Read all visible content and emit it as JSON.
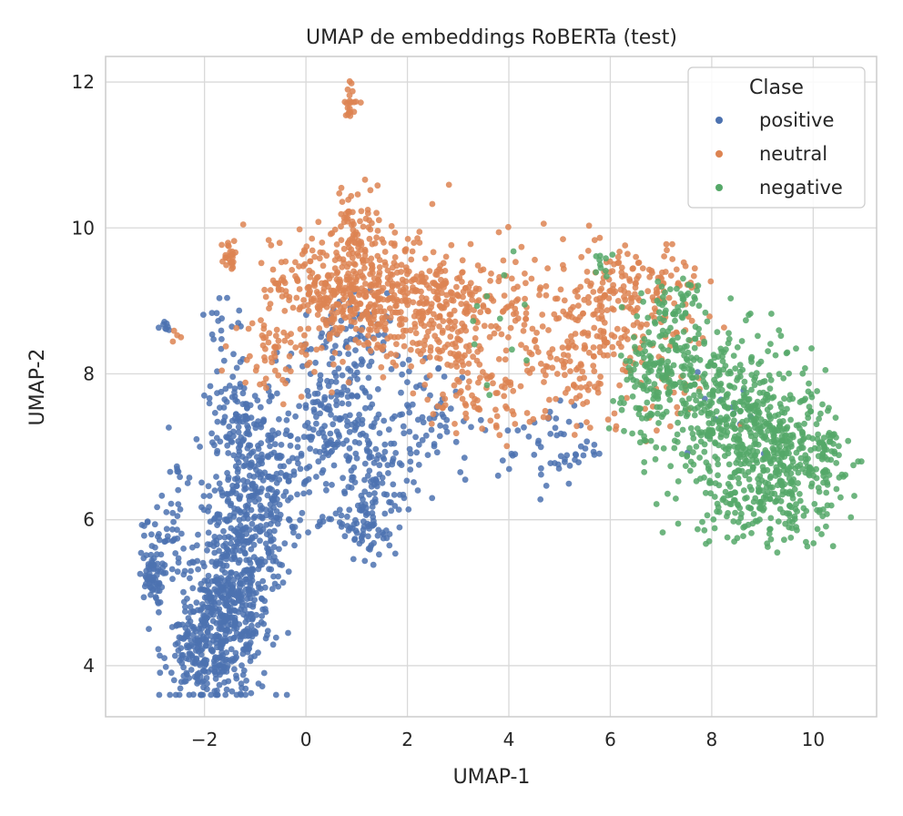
{
  "chart_data": {
    "type": "scatter",
    "title": "UMAP de embeddings RoBERTa (test)",
    "xlabel": "UMAP-1",
    "ylabel": "UMAP-2",
    "xlim": [
      -3.95,
      11.25
    ],
    "ylim": [
      3.3,
      12.35
    ],
    "xticks": [
      -2,
      0,
      2,
      4,
      6,
      8,
      10
    ],
    "yticks": [
      4,
      6,
      8,
      10,
      12
    ],
    "grid": true,
    "legend": {
      "title": "Clase",
      "placement": "top-right"
    },
    "colors": {
      "positive": "#4c72b0",
      "neutral": "#dd8452",
      "negative": "#55a868"
    },
    "series": [
      {
        "name": "positive",
        "clusters": [
          {
            "cx": -1.6,
            "cy": 4.6,
            "sx": 0.45,
            "sy": 0.55,
            "n": 420
          },
          {
            "cx": -2.1,
            "cy": 4.2,
            "sx": 0.35,
            "sy": 0.3,
            "n": 120
          },
          {
            "cx": -1.3,
            "cy": 5.6,
            "sx": 0.45,
            "sy": 0.5,
            "n": 200
          },
          {
            "cx": -3.05,
            "cy": 5.2,
            "sx": 0.12,
            "sy": 0.18,
            "n": 60
          },
          {
            "cx": -2.8,
            "cy": 5.8,
            "sx": 0.2,
            "sy": 0.3,
            "n": 40
          },
          {
            "cx": -0.8,
            "cy": 6.4,
            "sx": 0.5,
            "sy": 0.45,
            "n": 180
          },
          {
            "cx": -1.2,
            "cy": 7.2,
            "sx": 0.4,
            "sy": 0.4,
            "n": 140
          },
          {
            "cx": 0.5,
            "cy": 7.2,
            "sx": 0.45,
            "sy": 0.5,
            "n": 150
          },
          {
            "cx": 1.3,
            "cy": 6.5,
            "sx": 0.4,
            "sy": 0.5,
            "n": 120
          },
          {
            "cx": 1.2,
            "cy": 5.9,
            "sx": 0.3,
            "sy": 0.2,
            "n": 40
          },
          {
            "cx": 0.6,
            "cy": 8.3,
            "sx": 0.5,
            "sy": 0.4,
            "n": 90
          },
          {
            "cx": 2.3,
            "cy": 7.4,
            "sx": 0.55,
            "sy": 0.4,
            "n": 70
          },
          {
            "cx": 4.8,
            "cy": 7.0,
            "sx": 0.5,
            "sy": 0.3,
            "n": 55
          },
          {
            "cx": -1.5,
            "cy": 8.6,
            "sx": 0.2,
            "sy": 0.4,
            "n": 20
          },
          {
            "cx": -2.8,
            "cy": 8.65,
            "sx": 0.1,
            "sy": 0.05,
            "n": 8
          },
          {
            "cx": -2.6,
            "cy": 6.7,
            "sx": 0.1,
            "sy": 0.06,
            "n": 6
          },
          {
            "cx": 8.2,
            "cy": 7.6,
            "sx": 0.6,
            "sy": 0.4,
            "n": 12
          }
        ]
      },
      {
        "name": "neutral",
        "clusters": [
          {
            "cx": 1.3,
            "cy": 9.1,
            "sx": 0.75,
            "sy": 0.45,
            "n": 380
          },
          {
            "cx": 2.6,
            "cy": 8.8,
            "sx": 0.6,
            "sy": 0.5,
            "n": 200
          },
          {
            "cx": 0.2,
            "cy": 9.2,
            "sx": 0.45,
            "sy": 0.3,
            "n": 110
          },
          {
            "cx": 1.0,
            "cy": 10.1,
            "sx": 0.25,
            "sy": 0.25,
            "n": 50
          },
          {
            "cx": 0.9,
            "cy": 11.75,
            "sx": 0.07,
            "sy": 0.12,
            "n": 22
          },
          {
            "cx": -1.5,
            "cy": 9.6,
            "sx": 0.08,
            "sy": 0.12,
            "n": 25
          },
          {
            "cx": 5.8,
            "cy": 8.8,
            "sx": 0.5,
            "sy": 0.5,
            "n": 170
          },
          {
            "cx": 6.8,
            "cy": 9.2,
            "sx": 0.5,
            "sy": 0.3,
            "n": 80
          },
          {
            "cx": 4.2,
            "cy": 8.7,
            "sx": 0.6,
            "sy": 0.5,
            "n": 90
          },
          {
            "cx": 3.4,
            "cy": 7.6,
            "sx": 0.6,
            "sy": 0.3,
            "n": 60
          },
          {
            "cx": 5.2,
            "cy": 7.9,
            "sx": 0.5,
            "sy": 0.35,
            "n": 60
          },
          {
            "cx": -0.7,
            "cy": 8.5,
            "sx": 0.35,
            "sy": 0.4,
            "n": 60
          },
          {
            "cx": -2.6,
            "cy": 8.55,
            "sx": 0.06,
            "sy": 0.05,
            "n": 4
          },
          {
            "cx": 7.3,
            "cy": 7.9,
            "sx": 0.4,
            "sy": 0.35,
            "n": 35
          }
        ]
      },
      {
        "name": "negative",
        "clusters": [
          {
            "cx": 8.6,
            "cy": 7.3,
            "sx": 0.7,
            "sy": 0.55,
            "n": 420
          },
          {
            "cx": 9.6,
            "cy": 6.6,
            "sx": 0.5,
            "sy": 0.4,
            "n": 220
          },
          {
            "cx": 7.4,
            "cy": 8.2,
            "sx": 0.55,
            "sy": 0.45,
            "n": 180
          },
          {
            "cx": 8.5,
            "cy": 6.2,
            "sx": 0.5,
            "sy": 0.3,
            "n": 80
          },
          {
            "cx": 6.6,
            "cy": 7.7,
            "sx": 0.3,
            "sy": 0.4,
            "n": 60
          },
          {
            "cx": 7.3,
            "cy": 9.0,
            "sx": 0.35,
            "sy": 0.2,
            "n": 30
          },
          {
            "cx": 5.8,
            "cy": 9.5,
            "sx": 0.1,
            "sy": 0.1,
            "n": 10
          },
          {
            "cx": 3.8,
            "cy": 8.6,
            "sx": 0.4,
            "sy": 0.5,
            "n": 12
          },
          {
            "cx": 10.2,
            "cy": 6.9,
            "sx": 0.2,
            "sy": 0.3,
            "n": 40
          }
        ]
      }
    ]
  }
}
